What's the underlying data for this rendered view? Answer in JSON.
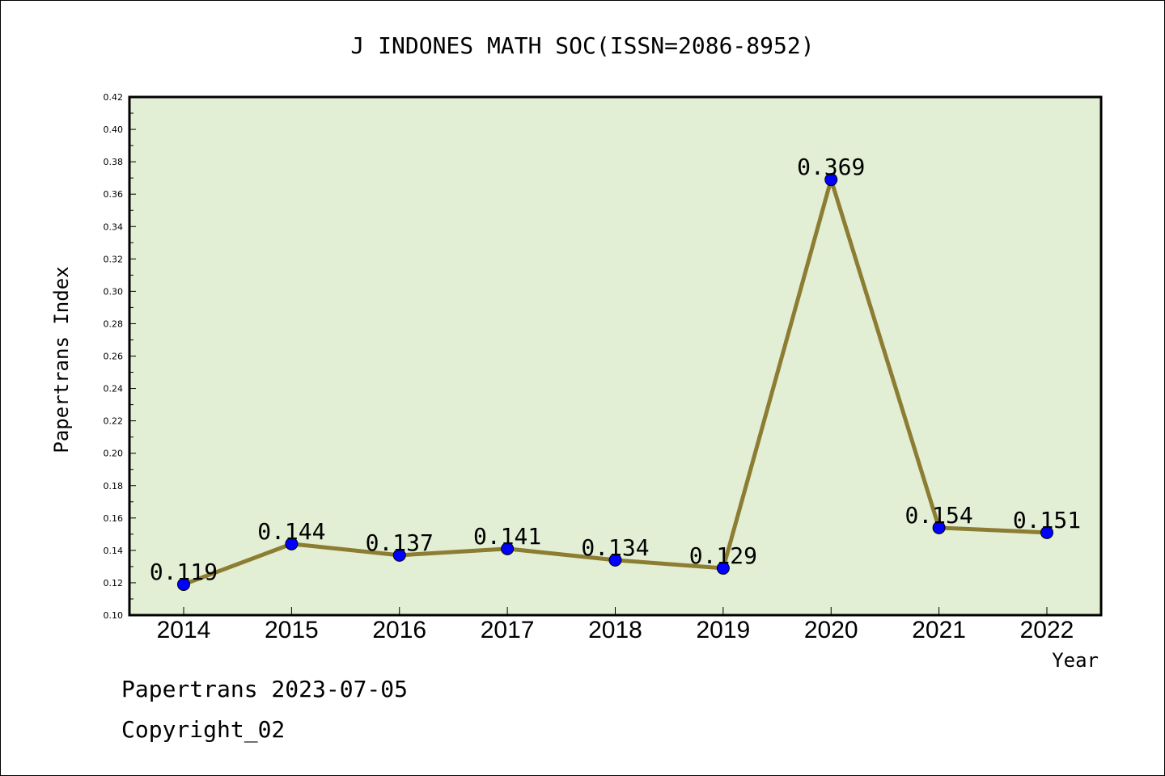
{
  "chart_data": {
    "type": "line",
    "title": "J INDONES MATH SOC(ISSN=2086-8952)",
    "xlabel": "Year",
    "ylabel": "Papertrans Index",
    "categories": [
      "2014",
      "2015",
      "2016",
      "2017",
      "2018",
      "2019",
      "2020",
      "2021",
      "2022"
    ],
    "series": [
      {
        "values": [
          0.119,
          0.144,
          0.137,
          0.141,
          0.134,
          0.129,
          0.369,
          0.154,
          0.151
        ]
      }
    ],
    "data_labels": [
      "0.119",
      "0.144",
      "0.137",
      "0.141",
      "0.134",
      "0.129",
      "0.369",
      "0.154",
      "0.151"
    ],
    "ylim": [
      0.1,
      0.42
    ],
    "yticks": [
      "0.10",
      "0.12",
      "0.14",
      "0.16",
      "0.18",
      "0.20",
      "0.22",
      "0.24",
      "0.26",
      "0.28",
      "0.30",
      "0.32",
      "0.34",
      "0.36",
      "0.38",
      "0.40",
      "0.42"
    ],
    "grid": false,
    "legend": "none",
    "colors": {
      "plot_bg": "#e2efd4",
      "line": "#8c7d32",
      "marker": "#0000ff"
    }
  },
  "footer": {
    "line1": "Papertrans 2023-07-05",
    "line2": "Copyright_02"
  }
}
